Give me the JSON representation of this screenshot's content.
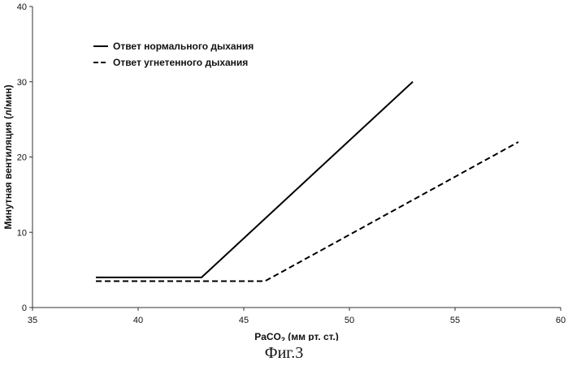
{
  "chart_data": {
    "type": "line",
    "title": "",
    "xlabel": "PaCO",
    "xlabel_sub": "2",
    "xlabel_suffix": " (мм рт. ст.)",
    "ylabel": "Минутная вентиляция (л/мин)",
    "xlim": [
      35,
      60
    ],
    "ylim": [
      0,
      40
    ],
    "xticks": [
      35,
      40,
      45,
      50,
      55,
      60
    ],
    "yticks": [
      0,
      10,
      20,
      30,
      40
    ],
    "grid": false,
    "legend_position": "top-left",
    "series": [
      {
        "name": "Ответ нормального дыхания",
        "style": "solid",
        "color": "#000000",
        "x": [
          38,
          43,
          53
        ],
        "y": [
          4,
          4,
          30
        ]
      },
      {
        "name": "Ответ угнетенного дыхания",
        "style": "dashed",
        "color": "#000000",
        "x": [
          38,
          46,
          58
        ],
        "y": [
          3.5,
          3.5,
          22
        ]
      }
    ]
  },
  "caption": "Фиг.3"
}
